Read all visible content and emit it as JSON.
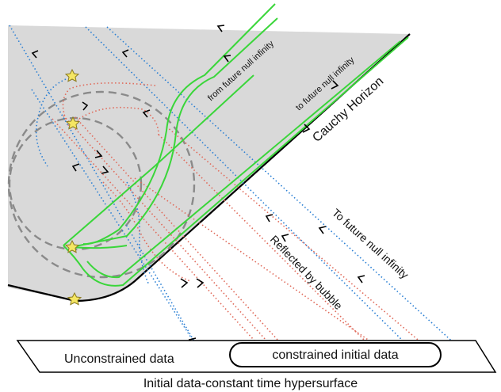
{
  "labels": {
    "from_future_null_infinity": "from future null infinity",
    "to_future_null_infinity_small": "to future null infinity",
    "cauchy_horizon": "Cauchy Horizon",
    "to_future_null_infinity_large": "To future null infinity",
    "reflected_by_bubble": "Reflected by bubble",
    "unconstrained_data": "Unconstrained data",
    "constrained_initial_data": "constrained initial data",
    "caption": "Initial data-constant time hypersurface"
  },
  "colors": {
    "shaded_region": "#d9d9d9",
    "boundary": "#000000",
    "null_ray_blue": "#2a7fd4",
    "reflected_ray_red": "#e06a5a",
    "horizon_green": "#3ad63a",
    "bubble_dash": "#8a8a8a",
    "star_fill": "#f5e663"
  }
}
